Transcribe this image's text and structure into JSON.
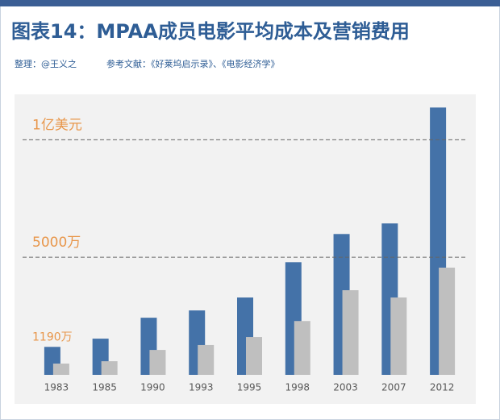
{
  "chart_data": {
    "type": "bar",
    "title": "图表14：MPAA成员电影平均成本及营销费用",
    "subtitle": "整理：@王义之",
    "source": "参考文献：《好莱坞启示录》、《电影经济学》",
    "categories": [
      "1983",
      "1985",
      "1990",
      "1993",
      "1995",
      "1998",
      "2003",
      "2007",
      "2012"
    ],
    "series": [
      {
        "color": "#4472a8",
        "values": [
          1190,
          1540,
          2430,
          2740,
          3290,
          4790,
          5990,
          6440,
          11370
        ]
      },
      {
        "color": "#bfbfbf",
        "values": [
          480,
          580,
          1060,
          1270,
          1610,
          2290,
          3600,
          3290,
          4560
        ]
      }
    ],
    "ylim": [
      0,
      12000
    ],
    "reference_lines": [
      {
        "value": 10000,
        "label": "1亿美元"
      },
      {
        "value": 5000,
        "label": "5000万"
      }
    ],
    "annotations": [
      {
        "value": 1190,
        "label": "1190万"
      }
    ],
    "annotation_color": "#e8964a"
  }
}
